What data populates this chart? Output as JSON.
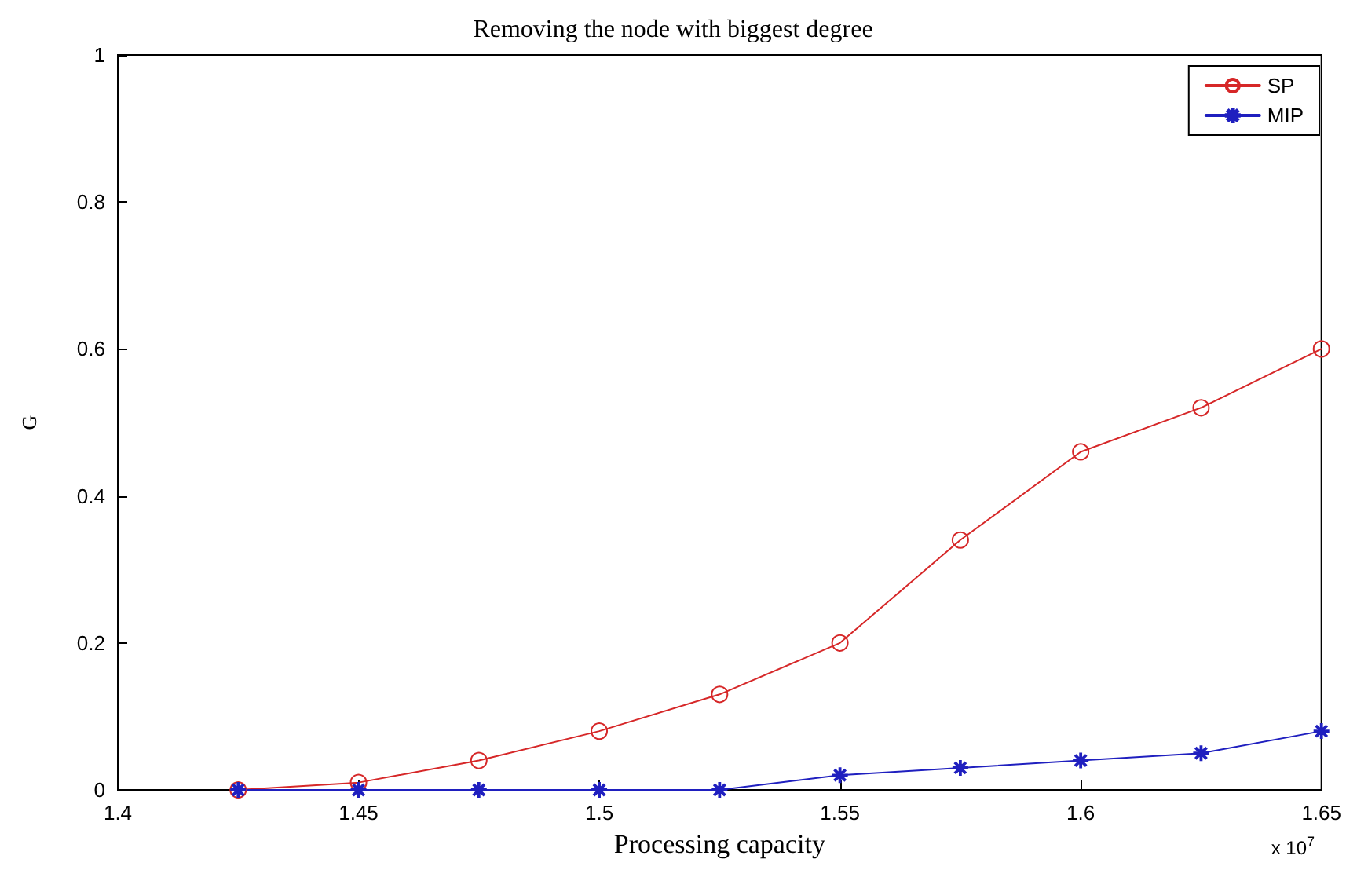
{
  "chart_data": {
    "type": "line",
    "title": "Removing the node with biggest degree",
    "xlabel": "Processing capacity",
    "ylabel": "G",
    "x": [
      1.425,
      1.45,
      1.475,
      1.5,
      1.525,
      1.55,
      1.575,
      1.6,
      1.625,
      1.65
    ],
    "series": [
      {
        "name": "SP",
        "color": "#d62728",
        "marker": "circle",
        "values": [
          0,
          0.01,
          0.04,
          0.08,
          0.13,
          0.2,
          0.34,
          0.46,
          0.52,
          0.6
        ]
      },
      {
        "name": "MIP",
        "color": "#1f1fbf",
        "marker": "star",
        "values": [
          0,
          0,
          0,
          0,
          0,
          0.02,
          0.03,
          0.04,
          0.05,
          0.08
        ]
      }
    ],
    "xlim": [
      1.4,
      1.65
    ],
    "xticks": [
      1.4,
      1.45,
      1.5,
      1.55,
      1.6,
      1.65
    ],
    "ylim": [
      0,
      1
    ],
    "yticks": [
      0,
      0.2,
      0.4,
      0.6,
      0.8,
      1
    ],
    "annotations": [
      "x 10$^{7}$"
    ],
    "grid": false,
    "legend": "top right",
    "line_style": "solid"
  }
}
